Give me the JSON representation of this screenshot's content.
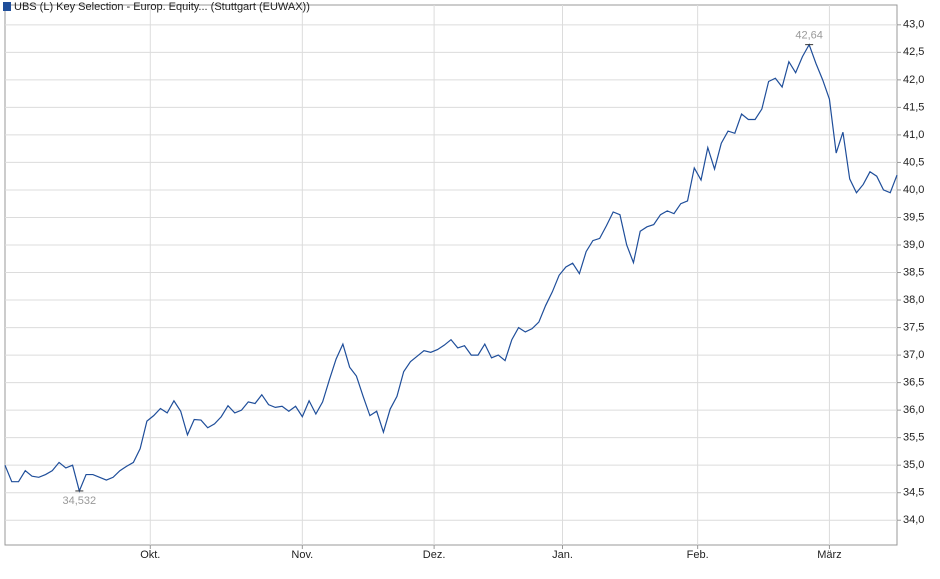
{
  "chart_data": {
    "type": "line",
    "title": "UBS (L) Key Selection - Europ. Equity... (Stuttgart (EUWAX))",
    "series": [
      {
        "name": "UBS (L) Key Selection - Europ. Equity... (Stuttgart (EUWAX))",
        "color": "#1f4e9a",
        "values": [
          35.0,
          34.7,
          34.7,
          34.9,
          34.8,
          34.78,
          34.83,
          34.9,
          35.05,
          34.95,
          35.0,
          34.532,
          34.83,
          34.83,
          34.78,
          34.73,
          34.78,
          34.9,
          34.98,
          35.05,
          35.3,
          35.8,
          35.9,
          36.03,
          35.95,
          36.17,
          35.98,
          35.55,
          35.83,
          35.82,
          35.68,
          35.75,
          35.88,
          36.08,
          35.95,
          36.0,
          36.15,
          36.12,
          36.28,
          36.1,
          36.05,
          36.07,
          35.98,
          36.07,
          35.88,
          36.17,
          35.93,
          36.15,
          36.55,
          36.93,
          37.2,
          36.78,
          36.62,
          36.25,
          35.9,
          35.98,
          35.6,
          36.02,
          36.25,
          36.7,
          36.88,
          36.98,
          37.08,
          37.05,
          37.1,
          37.18,
          37.28,
          37.13,
          37.17,
          37.0,
          37.0,
          37.2,
          36.95,
          37.0,
          36.9,
          37.28,
          37.5,
          37.42,
          37.48,
          37.6,
          37.9,
          38.15,
          38.45,
          38.6,
          38.67,
          38.48,
          38.88,
          39.08,
          39.12,
          39.35,
          39.6,
          39.55,
          39.0,
          38.68,
          39.25,
          39.33,
          39.37,
          39.55,
          39.62,
          39.57,
          39.75,
          39.8,
          40.4,
          40.18,
          40.77,
          40.38,
          40.85,
          41.07,
          41.03,
          41.38,
          41.28,
          41.28,
          41.47,
          41.97,
          42.03,
          41.87,
          42.33,
          42.13,
          42.42,
          42.64,
          42.3,
          42.0,
          41.65,
          40.67,
          41.05,
          40.2,
          39.95,
          40.1,
          40.33,
          40.25,
          40.0,
          39.95,
          40.27
        ]
      }
    ],
    "xlim": [
      0,
      132
    ],
    "xticks": [
      {
        "value": 21.5,
        "label": "Okt."
      },
      {
        "value": 44,
        "label": "Nov."
      },
      {
        "value": 63.5,
        "label": "Dez."
      },
      {
        "value": 82.5,
        "label": "Jan."
      },
      {
        "value": 102.5,
        "label": "Feb."
      },
      {
        "value": 122,
        "label": "März"
      }
    ],
    "ylim": [
      33.55,
      43.36
    ],
    "yticks": [
      {
        "value": 34.0,
        "label": "34,0"
      },
      {
        "value": 34.5,
        "label": "34,5"
      },
      {
        "value": 35.0,
        "label": "35,0"
      },
      {
        "value": 35.5,
        "label": "35,5"
      },
      {
        "value": 36.0,
        "label": "36,0"
      },
      {
        "value": 36.5,
        "label": "36,5"
      },
      {
        "value": 37.0,
        "label": "37,0"
      },
      {
        "value": 37.5,
        "label": "37,5"
      },
      {
        "value": 38.0,
        "label": "38,0"
      },
      {
        "value": 38.5,
        "label": "38,5"
      },
      {
        "value": 39.0,
        "label": "39,0"
      },
      {
        "value": 39.5,
        "label": "39,5"
      },
      {
        "value": 40.0,
        "label": "40,0"
      },
      {
        "value": 40.5,
        "label": "40,5"
      },
      {
        "value": 41.0,
        "label": "41,0"
      },
      {
        "value": 41.5,
        "label": "41,5"
      },
      {
        "value": 42.0,
        "label": "42,0"
      },
      {
        "value": 42.5,
        "label": "42,5"
      },
      {
        "value": 43.0,
        "label": "43,0"
      }
    ],
    "annotations": [
      {
        "value": 42.64,
        "label": "42,64"
      },
      {
        "value": 34.532,
        "label": "34,532"
      }
    ],
    "grid": true
  }
}
